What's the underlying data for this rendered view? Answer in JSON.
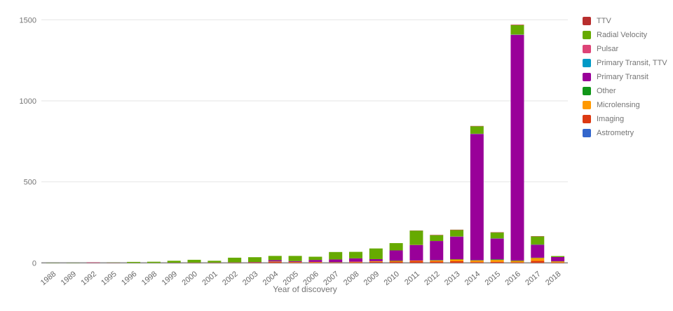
{
  "chart_data": {
    "type": "bar",
    "stacked": true,
    "title": "",
    "xlabel": "Year of discovery",
    "ylabel": "",
    "ylim": [
      0,
      1500
    ],
    "yticks": [
      0,
      500,
      1000,
      1500
    ],
    "grid": true,
    "legend_position": "right",
    "categories": [
      "1988",
      "1989",
      "1992",
      "1995",
      "1996",
      "1998",
      "1999",
      "2000",
      "2001",
      "2002",
      "2003",
      "2004",
      "2005",
      "2006",
      "2007",
      "2008",
      "2009",
      "2010",
      "2011",
      "2012",
      "2013",
      "2014",
      "2015",
      "2016",
      "2017",
      "2018"
    ],
    "series": [
      {
        "name": "Astrometry",
        "color": "#3366cc",
        "values": [
          0,
          0,
          0,
          0,
          0,
          0,
          0,
          0,
          0,
          0,
          0,
          0,
          0,
          0,
          0,
          0,
          1,
          0,
          0,
          0,
          0,
          0,
          0,
          0,
          0,
          0
        ]
      },
      {
        "name": "Imaging",
        "color": "#dc3912",
        "values": [
          0,
          0,
          0,
          0,
          0,
          0,
          0,
          1,
          1,
          1,
          3,
          6,
          4,
          3,
          3,
          4,
          6,
          8,
          10,
          8,
          10,
          5,
          6,
          4,
          12,
          3
        ]
      },
      {
        "name": "Microlensing",
        "color": "#ff9900",
        "values": [
          0,
          0,
          0,
          0,
          0,
          0,
          0,
          0,
          0,
          0,
          0,
          2,
          2,
          3,
          1,
          3,
          3,
          4,
          4,
          7,
          11,
          10,
          12,
          8,
          18,
          6
        ]
      },
      {
        "name": "Other",
        "color": "#109618",
        "values": [
          0,
          0,
          0,
          0,
          0,
          0,
          0,
          0,
          0,
          0,
          0,
          1,
          0,
          0,
          1,
          0,
          1,
          2,
          0,
          2,
          2,
          2,
          4,
          3,
          2,
          1
        ]
      },
      {
        "name": "Primary Transit",
        "color": "#990099",
        "values": [
          0,
          0,
          0,
          0,
          0,
          0,
          1,
          1,
          1,
          1,
          2,
          8,
          5,
          12,
          16,
          21,
          12,
          63,
          96,
          118,
          138,
          778,
          128,
          1392,
          80,
          26
        ]
      },
      {
        "name": "Primary Transit, TTV",
        "color": "#0099c6",
        "values": [
          0,
          0,
          0,
          0,
          0,
          0,
          0,
          0,
          0,
          0,
          0,
          0,
          0,
          0,
          0,
          0,
          0,
          0,
          0,
          0,
          1,
          1,
          1,
          1,
          1,
          0
        ]
      },
      {
        "name": "Pulsar",
        "color": "#dd4477",
        "values": [
          0,
          0,
          3,
          1,
          0,
          0,
          0,
          0,
          0,
          1,
          0,
          0,
          0,
          0,
          0,
          0,
          0,
          0,
          1,
          0,
          1,
          1,
          0,
          1,
          0,
          0
        ]
      },
      {
        "name": "Radial Velocity",
        "color": "#66aa00",
        "values": [
          1,
          1,
          0,
          1,
          6,
          7,
          12,
          17,
          11,
          29,
          30,
          26,
          32,
          20,
          46,
          40,
          66,
          45,
          88,
          36,
          40,
          46,
          36,
          58,
          50,
          6
        ]
      },
      {
        "name": "TTV",
        "color": "#b82e2e",
        "values": [
          0,
          0,
          0,
          0,
          0,
          0,
          0,
          0,
          0,
          0,
          0,
          0,
          0,
          0,
          0,
          0,
          0,
          0,
          1,
          2,
          2,
          2,
          2,
          3,
          2,
          0
        ]
      }
    ],
    "legend": [
      {
        "label": "TTV",
        "color": "#b82e2e"
      },
      {
        "label": "Radial Velocity",
        "color": "#66aa00"
      },
      {
        "label": "Pulsar",
        "color": "#dd4477"
      },
      {
        "label": "Primary Transit, TTV",
        "color": "#0099c6"
      },
      {
        "label": "Primary Transit",
        "color": "#990099"
      },
      {
        "label": "Other",
        "color": "#109618"
      },
      {
        "label": "Microlensing",
        "color": "#ff9900"
      },
      {
        "label": "Imaging",
        "color": "#dc3912"
      },
      {
        "label": "Astrometry",
        "color": "#3366cc"
      }
    ],
    "axis_text_color": "#757575",
    "gridline_color": "#e6e6e6",
    "baseline_color": "#9e9e9e"
  }
}
